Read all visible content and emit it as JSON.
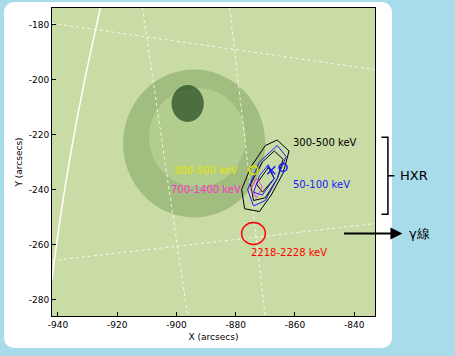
{
  "chart_data": {
    "type": "scatter",
    "x_label": "X (arcsecs)",
    "y_label": "Y (arcsecs)",
    "xlim": [
      -942,
      -833
    ],
    "ylim": [
      -286,
      -174
    ],
    "xticks": [
      -940,
      -920,
      -900,
      -880,
      -860,
      -840
    ],
    "yticks": [
      -280,
      -260,
      -240,
      -220,
      -200,
      -180
    ],
    "grid": false,
    "contours": [
      {
        "color": "#000000",
        "line_style": "solid",
        "loops": [
          {
            "x": [
              -866,
              -862,
              -864,
              -868,
              -872,
              -877,
              -878,
              -875,
              -870,
              -866
            ],
            "y": [
              -222,
              -226,
              -234,
              -242,
              -248,
              -247,
              -240,
              -232,
              -224,
              -222
            ]
          },
          {
            "x": [
              -867,
              -864,
              -866,
              -870,
              -874,
              -875,
              -871,
              -867
            ],
            "y": [
              -226,
              -229,
              -236,
              -243,
              -244,
              -238,
              -230,
              -226
            ]
          },
          {
            "x": [
              -869,
              -867,
              -871,
              -873,
              -869
            ],
            "y": [
              -232,
              -236,
              -241,
              -238,
              -232
            ]
          }
        ]
      },
      {
        "color": "#1a1aff",
        "line_style": "solid",
        "loops": [
          {
            "x": [
              -866,
              -863,
              -866,
              -870,
              -874,
              -876,
              -872,
              -866
            ],
            "y": [
              -224,
              -228,
              -236,
              -244,
              -246,
              -240,
              -230,
              -224
            ]
          },
          {
            "x": [
              -869,
              -867,
              -871,
              -874,
              -872,
              -869
            ],
            "y": [
              -231,
              -236,
              -242,
              -241,
              -235,
              -231
            ]
          }
        ]
      },
      {
        "color": "#ff33cc",
        "line_style": "solid",
        "loops": [
          {
            "x": [
              -873,
              -871,
              -873,
              -875,
              -873
            ],
            "y": [
              -236,
              -239,
              -243,
              -240,
              -236
            ]
          }
        ]
      }
    ],
    "circles": [
      {
        "color": "#e6e600",
        "x": -874,
        "y": -233,
        "radius": 1.5
      },
      {
        "color": "#ff0000",
        "x": -874,
        "y": -256,
        "radius": 4
      }
    ],
    "markers": [
      {
        "marker": "x",
        "color": "#1a1aff",
        "x": -868,
        "y": -233
      },
      {
        "marker": "circle",
        "color": "#1a1aff",
        "x": -864,
        "y": -232
      }
    ],
    "annotations": [
      {
        "text": "300-500 keV",
        "color": "#000000",
        "x": -850,
        "y": -223
      },
      {
        "text": "50-100 keV",
        "color": "#1a1aff",
        "x": -851,
        "y": -238
      },
      {
        "text": "300-500 keV",
        "color": "#e6e600",
        "x": -890,
        "y": -233
      },
      {
        "text": "700-1400 keV",
        "color": "#ff33cc",
        "x": -890,
        "y": -240
      },
      {
        "text": "2218-2228 keV",
        "color": "#ff0000",
        "x": -862,
        "y": -263
      }
    ],
    "side_labels": [
      {
        "text": "HXR",
        "y_range": [
          -249,
          -221
        ]
      },
      {
        "text": "γ線",
        "y": -256
      }
    ]
  }
}
